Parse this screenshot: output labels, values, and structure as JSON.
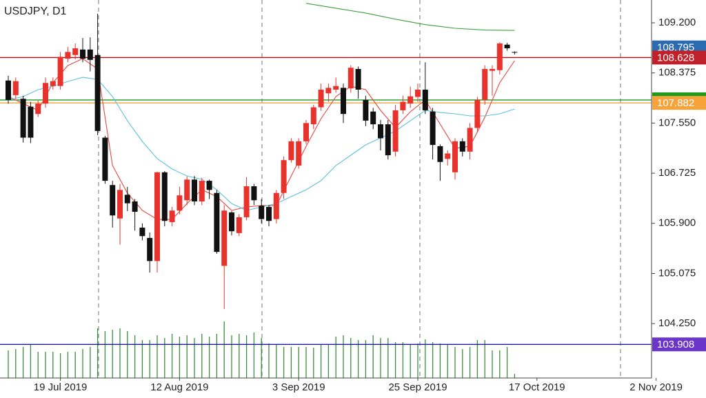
{
  "chart_data": {
    "type": "candlestick",
    "title": "USDJPY, D1",
    "categories": [
      null,
      null,
      null,
      null,
      null,
      null,
      null,
      "19 Jul 2019",
      null,
      null,
      null,
      null,
      null,
      null,
      null,
      null,
      null,
      null,
      null,
      null,
      null,
      null,
      null,
      "12 Aug 2019",
      null,
      null,
      null,
      null,
      null,
      null,
      null,
      null,
      null,
      null,
      null,
      null,
      null,
      null,
      null,
      "3 Sep 2019",
      null,
      null,
      null,
      null,
      null,
      null,
      null,
      null,
      null,
      null,
      null,
      null,
      null,
      null,
      null,
      "25 Sep 2019",
      null,
      null,
      null,
      null,
      null,
      null,
      null,
      null,
      null,
      null,
      null,
      null,
      null,
      null,
      null,
      "17 Oct 2019",
      null,
      null,
      null,
      null,
      null,
      null,
      null,
      null,
      null,
      null,
      null,
      null,
      null,
      null,
      null,
      "2 Nov 2019"
    ],
    "open": [
      108.25,
      108.01,
      107.95,
      107.82,
      107.7,
      107.87,
      108.16,
      108.16,
      108.61,
      108.67,
      108.76,
      108.76,
      108.67,
      107.31,
      106.53,
      105.98,
      106.37,
      106.26,
      105.83,
      105.66,
      105.28,
      106.74,
      105.92,
      106.11,
      106.28,
      106.62,
      106.26,
      106.6,
      106.4,
      105.2,
      106.08,
      105.74,
      106.0,
      106.51,
      106.19,
      106.17,
      105.97,
      106.4,
      106.94,
      106.85,
      107.25,
      107.53,
      107.81,
      108.04,
      108.1,
      108.13,
      108.12,
      108.44,
      107.93,
      107.74,
      107.53,
      107.53,
      107.08,
      107.76,
      107.87,
      107.98,
      108.1,
      107.74,
      107.17,
      106.96,
      106.74,
      107.25,
      107.08,
      107.47,
      107.93,
      108.41,
      108.42,
      108.84,
      108.72,
      null,
      null,
      null,
      null,
      null,
      null,
      null,
      null,
      null,
      null,
      null,
      null,
      null,
      null,
      null,
      null,
      null,
      null,
      null
    ],
    "high": [
      108.33,
      108.3,
      108.0,
      107.9,
      107.92,
      108.3,
      108.3,
      108.72,
      108.8,
      108.86,
      108.95,
      108.96,
      109.35,
      107.34,
      106.6,
      106.55,
      106.5,
      106.3,
      105.9,
      105.75,
      106.75,
      106.76,
      106.17,
      106.5,
      106.67,
      106.68,
      106.65,
      106.62,
      106.45,
      106.2,
      106.1,
      106.05,
      106.66,
      106.55,
      106.3,
      106.2,
      106.45,
      107.0,
      107.3,
      107.3,
      107.6,
      107.85,
      108.2,
      108.2,
      108.3,
      108.2,
      108.5,
      108.48,
      108.0,
      107.8,
      107.6,
      107.6,
      107.85,
      108.0,
      108.15,
      108.2,
      108.55,
      107.8,
      107.2,
      107.1,
      107.3,
      107.3,
      107.55,
      107.98,
      108.5,
      108.5,
      108.88,
      108.87,
      108.73,
      null,
      null,
      null,
      null,
      null,
      null,
      null,
      null,
      null,
      null,
      null,
      null,
      null,
      null,
      null,
      null,
      null,
      null,
      null
    ],
    "low": [
      107.87,
      107.95,
      107.23,
      107.22,
      107.65,
      107.8,
      108.1,
      108.1,
      108.55,
      108.6,
      108.55,
      108.4,
      107.35,
      106.55,
      105.83,
      105.55,
      106.1,
      105.78,
      105.62,
      105.09,
      105.09,
      105.85,
      105.85,
      106.05,
      106.2,
      106.2,
      106.2,
      106.3,
      105.4,
      104.49,
      105.7,
      105.69,
      105.95,
      106.2,
      105.9,
      105.85,
      105.9,
      106.3,
      106.9,
      106.8,
      107.2,
      107.45,
      107.75,
      107.9,
      108.05,
      107.55,
      108.05,
      107.95,
      107.5,
      107.45,
      107.1,
      106.95,
      107.0,
      107.7,
      107.8,
      107.9,
      107.7,
      106.95,
      106.6,
      106.85,
      106.62,
      107.0,
      106.95,
      107.4,
      107.85,
      108.0,
      108.35,
      108.74,
      108.68,
      null,
      null,
      null,
      null,
      null,
      null,
      null,
      null,
      null,
      null,
      null,
      null,
      null,
      null,
      null,
      null,
      null,
      null,
      null
    ],
    "close": [
      107.93,
      108.24,
      107.31,
      107.31,
      107.87,
      108.21,
      108.24,
      108.64,
      108.72,
      108.78,
      108.61,
      108.59,
      107.42,
      106.6,
      106.03,
      106.45,
      106.23,
      106.09,
      105.69,
      105.28,
      106.74,
      105.94,
      106.11,
      106.36,
      106.62,
      106.26,
      106.6,
      106.45,
      105.43,
      106.11,
      105.77,
      106.0,
      106.51,
      106.28,
      105.97,
      105.94,
      106.4,
      106.94,
      107.25,
      107.25,
      107.55,
      107.81,
      108.1,
      108.13,
      108.16,
      107.7,
      108.46,
      108.1,
      107.59,
      107.53,
      107.3,
      107.02,
      107.76,
      107.9,
      107.99,
      108.1,
      107.76,
      107.19,
      106.91,
      107.05,
      107.25,
      107.08,
      107.47,
      107.93,
      108.44,
      108.44,
      108.86,
      108.78,
      108.71,
      null,
      null,
      null,
      null,
      null,
      null,
      null,
      null,
      null,
      null,
      null,
      null,
      null,
      null,
      null,
      null,
      null,
      null,
      null
    ],
    "up_color": "#e8322b",
    "down_color": "#111111",
    "ylim": [
      103.355,
      109.575
    ],
    "yticks": [
      {
        "value": 109.2,
        "label": "109.200"
      },
      {
        "value": 108.375,
        "label": "108.375"
      },
      {
        "value": 107.55,
        "label": "107.550"
      },
      {
        "value": 106.725,
        "label": "106.725"
      },
      {
        "value": 105.9,
        "label": "105.900"
      },
      {
        "value": 105.075,
        "label": "105.075"
      },
      {
        "value": 104.25,
        "label": "104.250"
      }
    ],
    "lines": [
      {
        "color": "#e8453c",
        "x": [
          0,
          2,
          4,
          6,
          8,
          10,
          12,
          14,
          16,
          18,
          20,
          22,
          24,
          26,
          28,
          30,
          32,
          34,
          36,
          38,
          40,
          42,
          44,
          46,
          48,
          50,
          52,
          54,
          56,
          58,
          60,
          62,
          64,
          66,
          68
        ],
        "values": [
          107.986,
          107.872,
          107.759,
          108.213,
          108.497,
          108.61,
          108.44,
          106.851,
          106.397,
          106.113,
          105.965,
          105.965,
          106.226,
          106.453,
          106.34,
          106.113,
          106.17,
          106.192,
          106.192,
          106.68,
          107.168,
          107.622,
          107.986,
          108.156,
          108.099,
          107.759,
          107.475,
          107.736,
          107.929,
          107.532,
          107.134,
          107.168,
          107.645,
          108.213,
          108.576
        ]
      },
      {
        "color": "#5bc0de",
        "x": [
          0,
          2,
          4,
          6,
          8,
          10,
          12,
          14,
          16,
          18,
          20,
          22,
          24,
          26,
          28,
          30,
          32,
          34,
          36,
          38,
          40,
          42,
          44,
          46,
          48,
          50,
          52,
          54,
          56,
          58,
          60,
          62,
          64,
          66,
          68
        ],
        "values": [
          107.929,
          107.986,
          108.099,
          108.156,
          108.235,
          108.303,
          108.269,
          107.986,
          107.588,
          107.248,
          106.964,
          106.794,
          106.68,
          106.624,
          106.453,
          106.226,
          106.113,
          106.17,
          106.226,
          106.34,
          106.453,
          106.601,
          106.851,
          107.021,
          107.191,
          107.305,
          107.418,
          107.588,
          107.759,
          107.724,
          107.702,
          107.668,
          107.668,
          107.702,
          107.781
        ]
      },
      {
        "color": "#3aa03a",
        "x": [
          40,
          44,
          48,
          52,
          56,
          60,
          64,
          68
        ],
        "values": [
          109.52,
          109.44,
          109.36,
          109.26,
          109.17,
          109.11,
          109.08,
          109.075
        ]
      }
    ],
    "levels": [
      {
        "value": 107.93,
        "color": "#1e9a1e"
      },
      {
        "value": 107.882,
        "label": "107.882",
        "color": "#f5a33a"
      },
      {
        "value": 103.908,
        "label": "103.908",
        "color": "#1c1c96",
        "label_color": "#6a35c8"
      },
      {
        "value": 108.795,
        "label": "108.795",
        "color": "#2b6cb0",
        "line": false
      },
      {
        "value": 108.628,
        "label": "108.628",
        "color": "#a80f0f",
        "label_color": "#c0202a"
      }
    ],
    "volume": {
      "color": "#3c8c3c",
      "ylim": [
        0,
        100
      ],
      "values": [
        40,
        42,
        45,
        48,
        38,
        38,
        38,
        36,
        38,
        38,
        42,
        45,
        72,
        68,
        70,
        72,
        68,
        62,
        55,
        55,
        62,
        58,
        64,
        60,
        62,
        58,
        64,
        60,
        64,
        82,
        62,
        64,
        62,
        66,
        58,
        50,
        48,
        45,
        45,
        45,
        45,
        44,
        48,
        48,
        60,
        62,
        58,
        55,
        55,
        62,
        58,
        58,
        52,
        52,
        48,
        50,
        56,
        52,
        50,
        48,
        45,
        42,
        45,
        55,
        55,
        40,
        40,
        45,
        6,
        null,
        null,
        null,
        null,
        null,
        null,
        null,
        null,
        null,
        null,
        null,
        null,
        null,
        null,
        null,
        null,
        null,
        null,
        null
      ]
    }
  }
}
